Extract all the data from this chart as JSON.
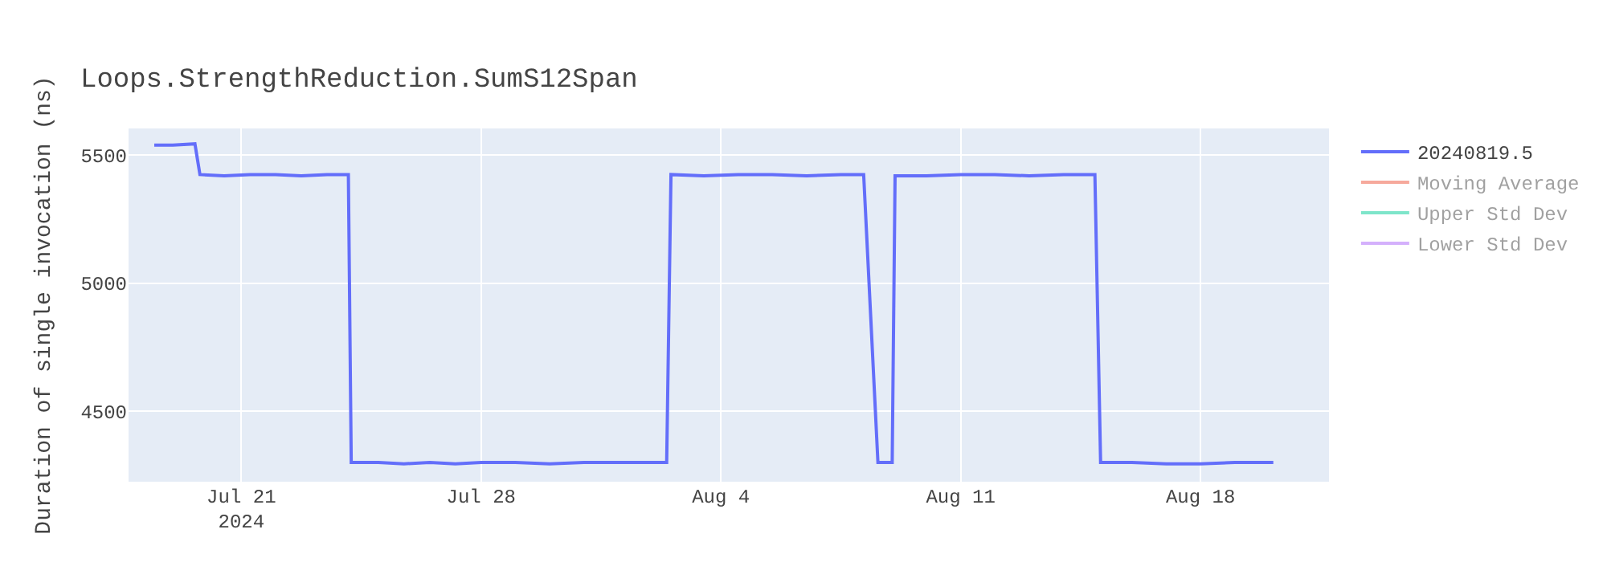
{
  "chart_data": {
    "type": "line",
    "title": "Loops.StrengthReduction.SumS12Span",
    "ylabel": "Duration of single invocation (ns)",
    "x": [
      "2024-07-18T11:00",
      "2024-07-19T00:00",
      "2024-07-19T15:30",
      "2024-07-19T19:00",
      "2024-07-20T12:00",
      "2024-07-21T06:00",
      "2024-07-22T00:00",
      "2024-07-22T18:00",
      "2024-07-23T12:00",
      "2024-07-24T03:00",
      "2024-07-24T05:00",
      "2024-07-25T00:00",
      "2024-07-25T18:00",
      "2024-07-26T12:00",
      "2024-07-27T06:00",
      "2024-07-28T00:00",
      "2024-07-29T00:00",
      "2024-07-30T00:00",
      "2024-07-31T00:00",
      "2024-08-01T00:00",
      "2024-08-02T10:00",
      "2024-08-02T13:00",
      "2024-08-03T12:00",
      "2024-08-04T12:00",
      "2024-08-05T12:00",
      "2024-08-06T12:00",
      "2024-08-07T12:00",
      "2024-08-08T04:00",
      "2024-08-08T14:00",
      "2024-08-09T00:00",
      "2024-08-09T02:00",
      "2024-08-10T00:00",
      "2024-08-11T00:00",
      "2024-08-12T00:00",
      "2024-08-13T00:00",
      "2024-08-14T00:00",
      "2024-08-14T22:00",
      "2024-08-15T02:00",
      "2024-08-16T00:00",
      "2024-08-17T00:00",
      "2024-08-18T00:00",
      "2024-08-19T00:00",
      "2024-08-20T03:00"
    ],
    "series": [
      {
        "name": "20240819.5",
        "color": "#636efa",
        "values": [
          5540,
          5540,
          5545,
          5425,
          5420,
          5425,
          5425,
          5420,
          5425,
          5425,
          4300,
          4300,
          4295,
          4300,
          4295,
          4300,
          4300,
          4295,
          4300,
          4300,
          4300,
          5425,
          5420,
          5425,
          5425,
          5420,
          5425,
          5425,
          4300,
          4300,
          5420,
          5420,
          5425,
          5425,
          5420,
          5425,
          5425,
          4300,
          4300,
          4295,
          4295,
          4300,
          4300
        ]
      },
      {
        "name": "Moving Average",
        "color": "#ef553b",
        "values": [
          null,
          null,
          null,
          null,
          null,
          null,
          null,
          null,
          null,
          null,
          null,
          null,
          null,
          null,
          null,
          null,
          null,
          null,
          null,
          null,
          null,
          null,
          null,
          null,
          null,
          null,
          null,
          null,
          null,
          null,
          null,
          null,
          null,
          null,
          null,
          null,
          null,
          null,
          null,
          null,
          null,
          null,
          null
        ]
      },
      {
        "name": "Upper Std Dev",
        "color": "#00cc96",
        "values": [
          null,
          null,
          null,
          null,
          null,
          null,
          null,
          null,
          null,
          null,
          null,
          null,
          null,
          null,
          null,
          null,
          null,
          null,
          null,
          null,
          null,
          null,
          null,
          null,
          null,
          null,
          null,
          null,
          null,
          null,
          null,
          null,
          null,
          null,
          null,
          null,
          null,
          null,
          null,
          null,
          null,
          null,
          null
        ]
      },
      {
        "name": "Lower Std Dev",
        "color": "#ab63fa",
        "values": [
          null,
          null,
          null,
          null,
          null,
          null,
          null,
          null,
          null,
          null,
          null,
          null,
          null,
          null,
          null,
          null,
          null,
          null,
          null,
          null,
          null,
          null,
          null,
          null,
          null,
          null,
          null,
          null,
          null,
          null,
          null,
          null,
          null,
          null,
          null,
          null,
          null,
          null,
          null,
          null,
          null,
          null,
          null
        ]
      }
    ],
    "xlim": [
      "2024-07-17T17:00",
      "2024-08-21T18:00"
    ],
    "xticks": [
      {
        "value": "2024-07-21",
        "label": "Jul 21\n2024"
      },
      {
        "value": "2024-07-28",
        "label": "Jul 28"
      },
      {
        "value": "2024-08-04",
        "label": "Aug 4"
      },
      {
        "value": "2024-08-11",
        "label": "Aug 11"
      },
      {
        "value": "2024-08-18",
        "label": "Aug 18"
      }
    ],
    "ylim": [
      4225,
      5605
    ],
    "yticks": [
      4500,
      5000,
      5500
    ],
    "grid": true,
    "legend": "top right",
    "marker": "none",
    "line_style": "solid"
  }
}
